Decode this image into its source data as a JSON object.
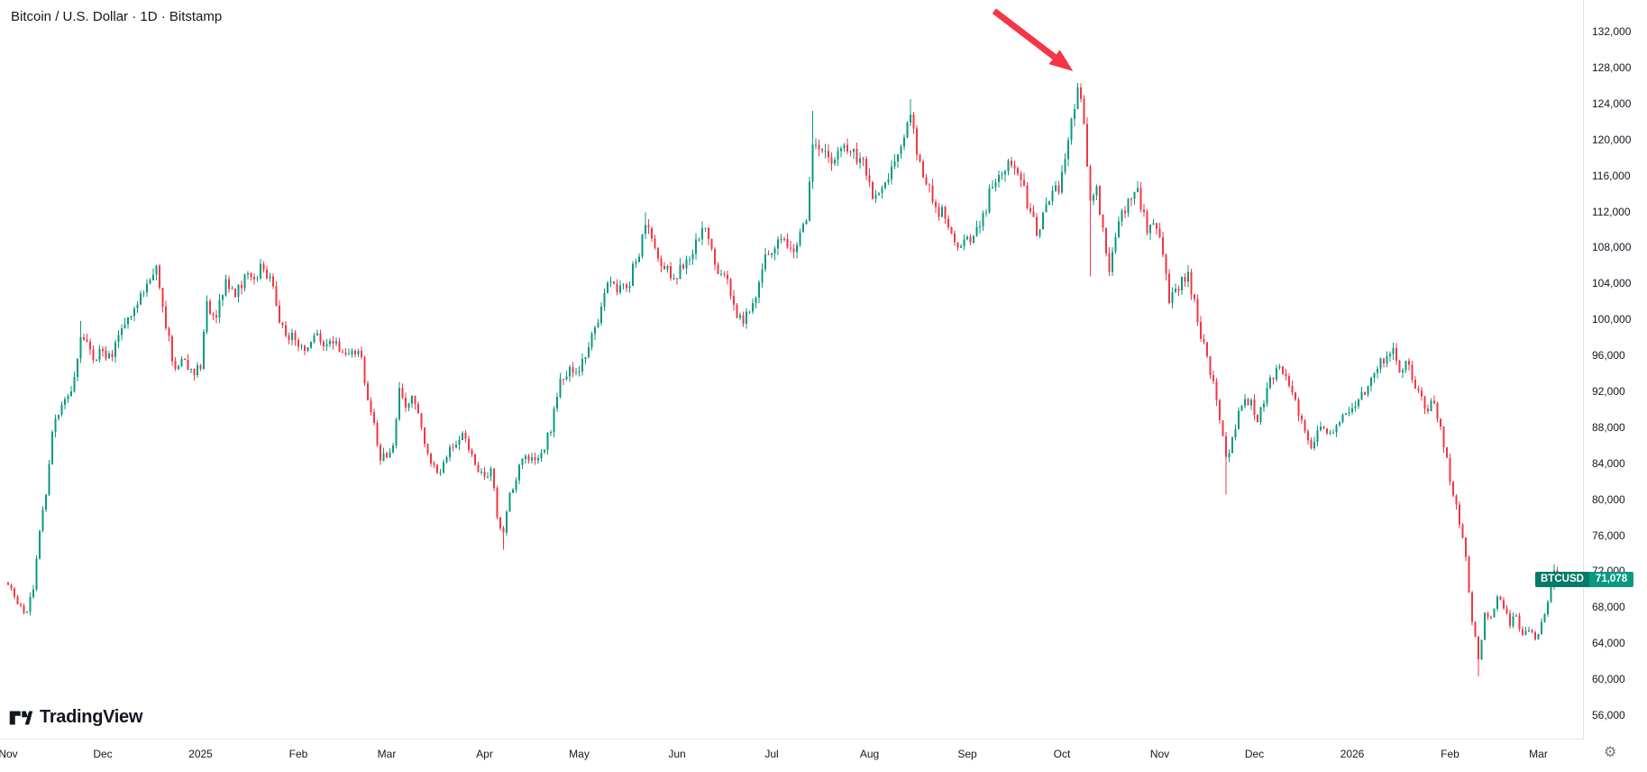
{
  "header": {
    "symbol_title": "Bitcoin / U.S. Dollar · 1D · Bitstamp"
  },
  "footer": {
    "brand": "TradingView"
  },
  "icons": {
    "settings_gear": "⚙"
  },
  "chart_data": {
    "type": "candlestick",
    "title": "Bitcoin / U.S. Dollar",
    "symbol": "BTCUSD",
    "interval": "1D",
    "exchange": "Bitstamp",
    "last_price": 71078,
    "last_price_label": "71,078",
    "colors": {
      "up": "#089981",
      "down": "#F23645",
      "badge_symbol_bg": "#067a66",
      "badge_price_bg": "#089981",
      "annotation": "#F23645"
    },
    "y_axis": {
      "tick_step": 4000,
      "ticks": [
        56000,
        60000,
        64000,
        68000,
        72000,
        76000,
        80000,
        84000,
        88000,
        92000,
        96000,
        100000,
        104000,
        108000,
        112000,
        116000,
        120000,
        124000,
        128000,
        132000
      ]
    },
    "x_ticks": [
      {
        "label": "Nov",
        "day": 0
      },
      {
        "label": "Dec",
        "day": 30
      },
      {
        "label": "2025",
        "day": 61
      },
      {
        "label": "Feb",
        "day": 92
      },
      {
        "label": "Mar",
        "day": 120
      },
      {
        "label": "Apr",
        "day": 151
      },
      {
        "label": "May",
        "day": 181
      },
      {
        "label": "Jun",
        "day": 212
      },
      {
        "label": "Jul",
        "day": 242
      },
      {
        "label": "Aug",
        "day": 273
      },
      {
        "label": "Sep",
        "day": 304
      },
      {
        "label": "Oct",
        "day": 334
      },
      {
        "label": "Nov",
        "day": 365
      },
      {
        "label": "Dec",
        "day": 395
      },
      {
        "label": "2026",
        "day": 426
      },
      {
        "label": "Feb",
        "day": 457
      },
      {
        "label": "Mar",
        "day": 485
      }
    ],
    "anchors": [
      [
        0,
        70500
      ],
      [
        2,
        69200
      ],
      [
        4,
        68200
      ],
      [
        6,
        67500
      ],
      [
        8,
        70000
      ],
      [
        10,
        76500
      ],
      [
        12,
        80500
      ],
      [
        14,
        87500
      ],
      [
        17,
        90500
      ],
      [
        20,
        92000
      ],
      [
        23,
        98000
      ],
      [
        25,
        97500
      ],
      [
        27,
        95500
      ],
      [
        30,
        96500
      ],
      [
        33,
        95800
      ],
      [
        36,
        99000
      ],
      [
        40,
        101200
      ],
      [
        44,
        104000
      ],
      [
        47,
        106000
      ],
      [
        50,
        99000
      ],
      [
        53,
        94500
      ],
      [
        56,
        95500
      ],
      [
        59,
        93800
      ],
      [
        61,
        94500
      ],
      [
        63,
        102000
      ],
      [
        66,
        100200
      ],
      [
        69,
        104500
      ],
      [
        72,
        102500
      ],
      [
        75,
        105000
      ],
      [
        78,
        104500
      ],
      [
        80,
        106200
      ],
      [
        83,
        104800
      ],
      [
        85,
        101500
      ],
      [
        88,
        98200
      ],
      [
        91,
        97700
      ],
      [
        94,
        96500
      ],
      [
        97,
        98200
      ],
      [
        100,
        97000
      ],
      [
        103,
        97300
      ],
      [
        106,
        96300
      ],
      [
        109,
        96500
      ],
      [
        112,
        95800
      ],
      [
        114,
        91000
      ],
      [
        116,
        88500
      ],
      [
        118,
        84300
      ],
      [
        120,
        84700
      ],
      [
        122,
        86000
      ],
      [
        124,
        92400
      ],
      [
        126,
        90200
      ],
      [
        128,
        91500
      ],
      [
        131,
        88000
      ],
      [
        134,
        84000
      ],
      [
        136,
        82900
      ],
      [
        138,
        84100
      ],
      [
        141,
        85800
      ],
      [
        144,
        87400
      ],
      [
        146,
        85500
      ],
      [
        148,
        83800
      ],
      [
        151,
        82500
      ],
      [
        153,
        83400
      ],
      [
        155,
        78000
      ],
      [
        157,
        76300
      ],
      [
        159,
        80700
      ],
      [
        161,
        82100
      ],
      [
        163,
        84500
      ],
      [
        166,
        84700
      ],
      [
        169,
        85200
      ],
      [
        172,
        87500
      ],
      [
        175,
        93400
      ],
      [
        178,
        94700
      ],
      [
        181,
        94200
      ],
      [
        184,
        96900
      ],
      [
        187,
        99600
      ],
      [
        190,
        104100
      ],
      [
        193,
        103000
      ],
      [
        196,
        103500
      ],
      [
        199,
        106400
      ],
      [
        202,
        110500
      ],
      [
        204,
        109000
      ],
      [
        206,
        106800
      ],
      [
        208,
        105600
      ],
      [
        211,
        104600
      ],
      [
        214,
        105700
      ],
      [
        217,
        107300
      ],
      [
        221,
        110200
      ],
      [
        224,
        106100
      ],
      [
        227,
        105000
      ],
      [
        230,
        101600
      ],
      [
        233,
        99500
      ],
      [
        236,
        101800
      ],
      [
        239,
        105600
      ],
      [
        241,
        107200
      ],
      [
        244,
        108900
      ],
      [
        247,
        108000
      ],
      [
        250,
        108300
      ],
      [
        253,
        111000
      ],
      [
        255,
        119400
      ],
      [
        258,
        118700
      ],
      [
        261,
        117300
      ],
      [
        264,
        119000
      ],
      [
        267,
        118600
      ],
      [
        270,
        117900
      ],
      [
        272,
        116000
      ],
      [
        274,
        113400
      ],
      [
        277,
        114600
      ],
      [
        280,
        117000
      ],
      [
        283,
        119200
      ],
      [
        286,
        122800
      ],
      [
        288,
        118300
      ],
      [
        291,
        115000
      ],
      [
        294,
        112500
      ],
      [
        297,
        111200
      ],
      [
        300,
        108600
      ],
      [
        303,
        108900
      ],
      [
        306,
        109300
      ],
      [
        309,
        111800
      ],
      [
        312,
        114700
      ],
      [
        315,
        116100
      ],
      [
        318,
        117100
      ],
      [
        321,
        115500
      ],
      [
        324,
        112000
      ],
      [
        326,
        109300
      ],
      [
        328,
        111900
      ],
      [
        331,
        114300
      ],
      [
        333,
        114100
      ],
      [
        335,
        117800
      ],
      [
        337,
        122300
      ],
      [
        339,
        125800
      ],
      [
        341,
        121700
      ],
      [
        343,
        113200
      ],
      [
        345,
        114800
      ],
      [
        347,
        110200
      ],
      [
        349,
        105300
      ],
      [
        352,
        110900
      ],
      [
        355,
        113400
      ],
      [
        358,
        114600
      ],
      [
        361,
        109600
      ],
      [
        364,
        110100
      ],
      [
        366,
        107200
      ],
      [
        368,
        101800
      ],
      [
        371,
        103200
      ],
      [
        374,
        105300
      ],
      [
        377,
        99700
      ],
      [
        380,
        95900
      ],
      [
        383,
        91000
      ],
      [
        386,
        84700
      ],
      [
        388,
        86900
      ],
      [
        391,
        90400
      ],
      [
        394,
        91100
      ],
      [
        396,
        88600
      ],
      [
        399,
        92400
      ],
      [
        402,
        94600
      ],
      [
        405,
        93700
      ],
      [
        408,
        91100
      ],
      [
        411,
        87600
      ],
      [
        413,
        85700
      ],
      [
        416,
        88100
      ],
      [
        419,
        87400
      ],
      [
        422,
        88600
      ],
      [
        425,
        89700
      ],
      [
        428,
        91100
      ],
      [
        431,
        92600
      ],
      [
        434,
        94500
      ],
      [
        437,
        95900
      ],
      [
        439,
        96800
      ],
      [
        441,
        94100
      ],
      [
        443,
        95400
      ],
      [
        446,
        92300
      ],
      [
        449,
        90100
      ],
      [
        452,
        90700
      ],
      [
        454,
        88100
      ],
      [
        456,
        84600
      ],
      [
        458,
        80400
      ],
      [
        460,
        77200
      ],
      [
        462,
        73600
      ],
      [
        464,
        66400
      ],
      [
        466,
        62200
      ],
      [
        468,
        67400
      ],
      [
        470,
        66900
      ],
      [
        472,
        69200
      ],
      [
        474,
        67900
      ],
      [
        476,
        65900
      ],
      [
        478,
        67100
      ],
      [
        480,
        64900
      ],
      [
        482,
        65400
      ],
      [
        484,
        64400
      ],
      [
        486,
        66400
      ],
      [
        488,
        68600
      ],
      [
        490,
        72100
      ],
      [
        491,
        71078
      ]
    ],
    "wick_overrides": [
      {
        "day": 23,
        "high": 99800
      },
      {
        "day": 157,
        "low": 74400
      },
      {
        "day": 202,
        "high": 111900
      },
      {
        "day": 255,
        "high": 123200
      },
      {
        "day": 286,
        "high": 124500
      },
      {
        "day": 339,
        "high": 126300
      },
      {
        "day": 343,
        "low": 104800
      },
      {
        "day": 386,
        "low": 80500
      },
      {
        "day": 439,
        "high": 97400
      },
      {
        "day": 466,
        "low": 60300
      },
      {
        "day": 490,
        "high": 72800
      }
    ],
    "annotation": {
      "type": "arrow",
      "color": "#F23645",
      "from_day": 312.5,
      "from_price": 134300,
      "to_day": 337.5,
      "to_price": 127600
    }
  }
}
